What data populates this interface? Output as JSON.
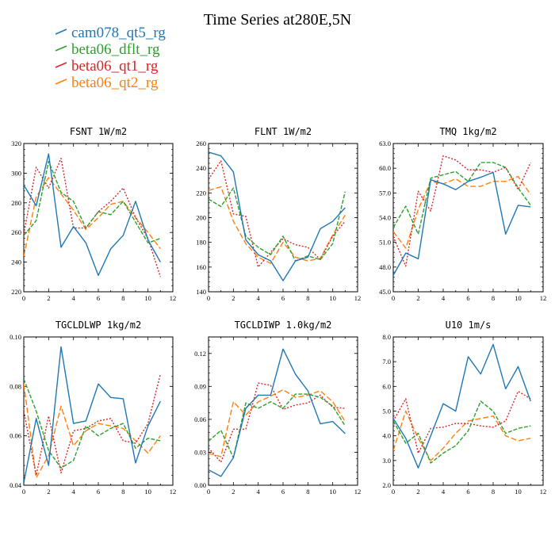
{
  "title": "Time Series at280E,5N",
  "colors": {
    "cam078_qt5_rg": "#1f77b4",
    "beta06_dflt_rg": "#2ca02c",
    "beta06_qt1_rg": "#d62728",
    "beta06_qt2_rg": "#ff7f0e"
  },
  "legend": [
    "cam078_qt5_rg",
    "beta06_dflt_rg",
    "beta06_qt1_rg",
    "beta06_qt2_rg"
  ],
  "chart_data": [
    {
      "type": "line",
      "title": "FSNT   1W/m2",
      "x": [
        0,
        1,
        2,
        3,
        4,
        5,
        6,
        7,
        8,
        9,
        10,
        11
      ],
      "xlim": [
        0,
        12
      ],
      "xticks": [
        0,
        2,
        4,
        6,
        8,
        10,
        12
      ],
      "ylim": [
        220,
        320
      ],
      "yticks": [
        "220",
        "240",
        "260",
        "280",
        "300",
        "320"
      ],
      "series": [
        {
          "name": "cam078_qt5_rg",
          "values": [
            292,
            278,
            313,
            250,
            264,
            253,
            231,
            249,
            258,
            281,
            255,
            240
          ]
        },
        {
          "name": "beta06_dflt_rg",
          "values": [
            258,
            268,
            308,
            287,
            281,
            263,
            274,
            272,
            281,
            267,
            253,
            256
          ]
        },
        {
          "name": "beta06_qt1_rg",
          "values": [
            259,
            304,
            290,
            310,
            263,
            263,
            274,
            281,
            290,
            270,
            256,
            230
          ]
        },
        {
          "name": "beta06_qt2_rg",
          "values": [
            244,
            284,
            297,
            286,
            275,
            262,
            270,
            279,
            281,
            270,
            260,
            249
          ]
        }
      ]
    },
    {
      "type": "line",
      "title": "FLNT   1W/m2",
      "x": [
        0,
        1,
        2,
        3,
        4,
        5,
        6,
        7,
        8,
        9,
        10,
        11
      ],
      "xlim": [
        0,
        12
      ],
      "xticks": [
        0,
        2,
        4,
        6,
        8,
        10,
        12
      ],
      "ylim": [
        140,
        260
      ],
      "yticks": [
        "140",
        "160",
        "180",
        "200",
        "220",
        "240",
        "260"
      ],
      "series": [
        {
          "name": "cam078_qt5_rg",
          "values": [
            253,
            250,
            237,
            182,
            170,
            165,
            149,
            165,
            168,
            191,
            197,
            208
          ]
        },
        {
          "name": "beta06_dflt_rg",
          "values": [
            215,
            209,
            224,
            185,
            176,
            170,
            185,
            165,
            169,
            166,
            179,
            221
          ]
        },
        {
          "name": "beta06_qt1_rg",
          "values": [
            231,
            246,
            203,
            201,
            160,
            172,
            183,
            178,
            176,
            166,
            185,
            197
          ]
        },
        {
          "name": "beta06_qt2_rg",
          "values": [
            222,
            225,
            197,
            179,
            168,
            163,
            180,
            168,
            165,
            167,
            186,
            202
          ]
        }
      ]
    },
    {
      "type": "line",
      "title": "TMQ   1kg/m2",
      "x": [
        0,
        1,
        2,
        3,
        4,
        5,
        6,
        7,
        8,
        9,
        10,
        11
      ],
      "xlim": [
        0,
        12
      ],
      "xticks": [
        0,
        2,
        4,
        6,
        8,
        10,
        12
      ],
      "ylim": [
        45,
        63
      ],
      "yticks": [
        "45.0",
        "48.0",
        "51.0",
        "54.0",
        "57.0",
        "60.0",
        "63.0"
      ],
      "series": [
        {
          "name": "cam078_qt5_rg",
          "values": [
            47.0,
            49.7,
            49.0,
            58.6,
            58.1,
            57.4,
            58.4,
            58.9,
            59.5,
            52.0,
            55.5,
            55.3
          ]
        },
        {
          "name": "beta06_dflt_rg",
          "values": [
            52.8,
            55.4,
            52.0,
            58.8,
            59.2,
            59.6,
            58.4,
            60.7,
            60.7,
            60.1,
            57.6,
            55.5
          ]
        },
        {
          "name": "beta06_qt1_rg",
          "values": [
            51.7,
            48.1,
            57.2,
            54.8,
            61.5,
            61.0,
            59.8,
            59.8,
            59.5,
            60.1,
            57.4,
            60.7
          ]
        },
        {
          "name": "beta06_qt2_rg",
          "values": [
            52.3,
            50.3,
            55.0,
            58.4,
            58.1,
            58.7,
            57.8,
            57.8,
            58.4,
            58.4,
            59.0,
            56.8
          ]
        }
      ]
    },
    {
      "type": "line",
      "title": "TGCLDLWP   1kg/m2",
      "x": [
        0,
        1,
        2,
        3,
        4,
        5,
        6,
        7,
        8,
        9,
        10,
        11
      ],
      "xlim": [
        0,
        12
      ],
      "xticks": [
        0,
        2,
        4,
        6,
        8,
        10,
        12
      ],
      "ylim": [
        0.04,
        0.1
      ],
      "yticks": [
        "0.04",
        "0.06",
        "0.08",
        "0.10"
      ],
      "series": [
        {
          "name": "cam078_qt5_rg",
          "values": [
            0.041,
            0.067,
            0.048,
            0.096,
            0.065,
            0.066,
            0.081,
            0.0755,
            0.075,
            0.049,
            0.064,
            0.074
          ]
        },
        {
          "name": "beta06_dflt_rg",
          "values": [
            0.083,
            0.07,
            0.054,
            0.047,
            0.05,
            0.064,
            0.06,
            0.063,
            0.065,
            0.055,
            0.059,
            0.058
          ]
        },
        {
          "name": "beta06_qt1_rg",
          "values": [
            0.07,
            0.044,
            0.068,
            0.045,
            0.062,
            0.063,
            0.066,
            0.067,
            0.058,
            0.057,
            0.065,
            0.085
          ]
        },
        {
          "name": "beta06_qt2_rg",
          "values": [
            0.081,
            0.043,
            0.052,
            0.072,
            0.056,
            0.062,
            0.065,
            0.064,
            0.063,
            0.058,
            0.053,
            0.06
          ]
        }
      ]
    },
    {
      "type": "line",
      "title": "TGCLDIWP   1.0kg/m2",
      "x": [
        0,
        1,
        2,
        3,
        4,
        5,
        6,
        7,
        8,
        9,
        10,
        11
      ],
      "xlim": [
        0,
        12
      ],
      "xticks": [
        0,
        2,
        4,
        6,
        8,
        10,
        12
      ],
      "ylim": [
        0.0,
        0.135
      ],
      "yticks": [
        "0.00",
        "0.03",
        "0.06",
        "0.09",
        "0.12"
      ],
      "series": [
        {
          "name": "cam078_qt5_rg",
          "values": [
            0.014,
            0.008,
            0.025,
            0.07,
            0.082,
            0.082,
            0.124,
            0.101,
            0.086,
            0.056,
            0.058,
            0.047
          ]
        },
        {
          "name": "beta06_dflt_rg",
          "values": [
            0.04,
            0.05,
            0.025,
            0.075,
            0.07,
            0.076,
            0.07,
            0.083,
            0.083,
            0.08,
            0.072,
            0.054
          ]
        },
        {
          "name": "beta06_qt1_rg",
          "values": [
            0.034,
            0.021,
            0.051,
            0.051,
            0.093,
            0.091,
            0.069,
            0.073,
            0.075,
            0.082,
            0.071,
            0.07
          ]
        },
        {
          "name": "beta06_qt2_rg",
          "values": [
            0.029,
            0.026,
            0.076,
            0.064,
            0.076,
            0.081,
            0.087,
            0.08,
            0.082,
            0.086,
            0.076,
            0.058
          ]
        }
      ]
    },
    {
      "type": "line",
      "title": "U10   1m/s",
      "x": [
        0,
        1,
        2,
        3,
        4,
        5,
        6,
        7,
        8,
        9,
        10,
        11
      ],
      "xlim": [
        0,
        12
      ],
      "xticks": [
        0,
        2,
        4,
        6,
        8,
        10,
        12
      ],
      "ylim": [
        2.0,
        8.0
      ],
      "yticks": [
        "2.0",
        "3.0",
        "4.0",
        "5.0",
        "6.0",
        "7.0",
        "8.0"
      ],
      "series": [
        {
          "name": "cam078_qt5_rg",
          "values": [
            4.7,
            3.9,
            2.7,
            4.0,
            5.3,
            5.0,
            7.2,
            6.5,
            7.7,
            5.9,
            6.8,
            5.4
          ]
        },
        {
          "name": "beta06_dflt_rg",
          "values": [
            4.6,
            3.7,
            4.1,
            2.9,
            3.3,
            3.6,
            4.2,
            5.4,
            5.0,
            4.1,
            4.3,
            4.4
          ]
        },
        {
          "name": "beta06_qt1_rg",
          "values": [
            4.6,
            5.5,
            3.3,
            4.3,
            4.35,
            4.5,
            4.5,
            4.4,
            4.35,
            4.6,
            5.8,
            5.5
          ]
        },
        {
          "name": "beta06_qt2_rg",
          "values": [
            3.4,
            5.0,
            3.9,
            3.0,
            3.5,
            4.1,
            4.6,
            4.7,
            4.8,
            4.0,
            3.8,
            3.9
          ]
        }
      ]
    }
  ]
}
